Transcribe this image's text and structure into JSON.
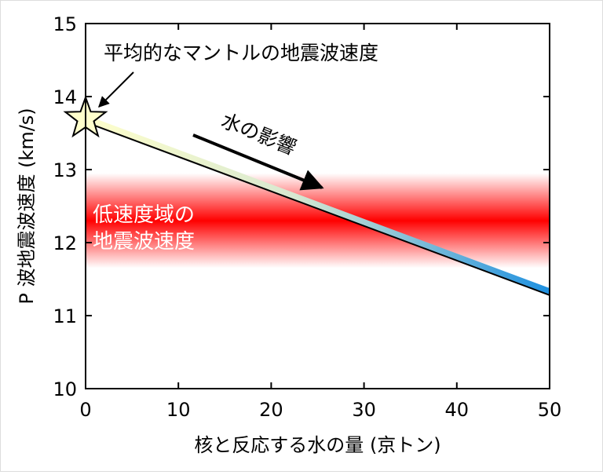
{
  "chart_data": {
    "type": "line",
    "x_label": "核と反応する水の量 (京トン)",
    "y_label": "P 波地震波速度 (km/s)",
    "xlim": [
      0,
      50
    ],
    "xticks": [
      0,
      10,
      20,
      30,
      40,
      50
    ],
    "ylim": [
      10,
      15
    ],
    "yticks": [
      10,
      11,
      12,
      13,
      14,
      15
    ],
    "series": [
      {
        "x": [
          0,
          50
        ],
        "values": [
          13.65,
          11.28
        ],
        "color": "#000000"
      }
    ],
    "band": {
      "range": [
        11.65,
        12.95
      ],
      "color": "#ff0000",
      "label_lines": [
        "低速度域の",
        "地震波速度"
      ]
    },
    "annotations": {
      "mantle": "平均的なマントルの地震波速度",
      "water": "水の影響"
    }
  }
}
